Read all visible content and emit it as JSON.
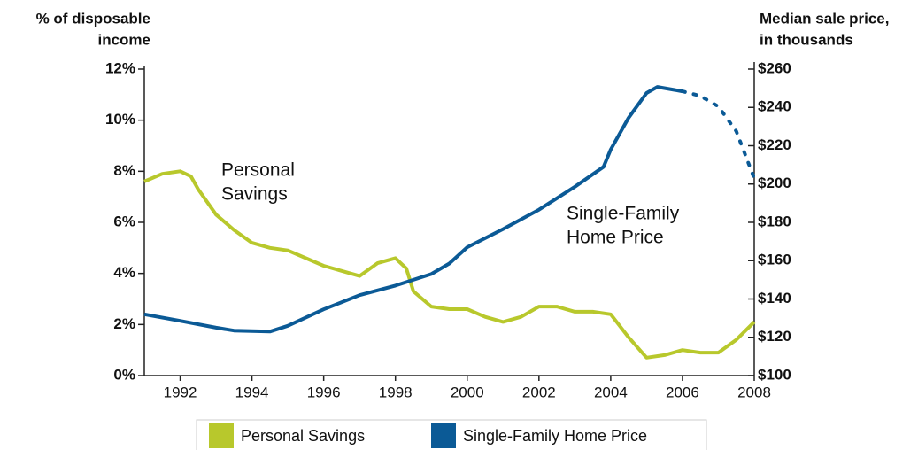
{
  "chart_data": {
    "type": "line",
    "y_axis_title": [
      "% of disposable",
      "income"
    ],
    "y2_axis_title": [
      "Median sale price,",
      "in thousands"
    ],
    "annotations": [
      [
        "Personal",
        "Savings"
      ],
      [
        "Single-Family",
        "Home Price"
      ]
    ],
    "xlim": [
      1991,
      2008
    ],
    "xticks": [
      1992,
      1994,
      1996,
      1998,
      2000,
      2002,
      2004,
      2006,
      2008
    ],
    "ylim": [
      0,
      12
    ],
    "yticks": [
      {
        "value": 0,
        "label": "0%"
      },
      {
        "value": 2,
        "label": "2%"
      },
      {
        "value": 4,
        "label": "4%"
      },
      {
        "value": 6,
        "label": "6%"
      },
      {
        "value": 8,
        "label": "8%"
      },
      {
        "value": 10,
        "label": "10%"
      },
      {
        "value": 12,
        "label": "12%"
      }
    ],
    "y2lim": [
      100,
      260
    ],
    "y2ticks": [
      {
        "value": 100,
        "label": "$100"
      },
      {
        "value": 120,
        "label": "$120"
      },
      {
        "value": 140,
        "label": "$140"
      },
      {
        "value": 160,
        "label": "$160"
      },
      {
        "value": 180,
        "label": "$180"
      },
      {
        "value": 200,
        "label": "$200"
      },
      {
        "value": 220,
        "label": "$220"
      },
      {
        "value": 240,
        "label": "$240"
      },
      {
        "value": 260,
        "label": "$260"
      }
    ],
    "series": [
      {
        "name": "Personal Savings",
        "color": "#b8c82c",
        "x": [
          1991,
          1991.5,
          1992,
          1992.3,
          1992.5,
          1993,
          1993.5,
          1994,
          1994.5,
          1995,
          1995.5,
          1996,
          1996.5,
          1997,
          1997.5,
          1998,
          1998.3,
          1998.5,
          1999,
          1999.5,
          2000,
          2000.5,
          2001,
          2001.5,
          2002,
          2002.5,
          2003,
          2003.5,
          2004,
          2004.5,
          2005,
          2005.5,
          2006,
          2006.5,
          2007,
          2007.5,
          2008
        ],
        "values": [
          7.6,
          7.9,
          8.0,
          7.8,
          7.3,
          6.3,
          5.7,
          5.2,
          5.0,
          4.9,
          4.6,
          4.3,
          4.1,
          3.9,
          4.4,
          4.6,
          4.2,
          3.3,
          2.7,
          2.6,
          2.6,
          2.3,
          2.1,
          2.3,
          2.7,
          2.7,
          2.5,
          2.5,
          2.4,
          1.5,
          0.7,
          0.8,
          1.0,
          0.9,
          0.9,
          1.4,
          2.1
        ]
      },
      {
        "name": "Single-Family Home Price",
        "color": "#0b5a96",
        "axis": "y2",
        "dashed_after": 2006,
        "x": [
          1991,
          1992,
          1993,
          1993.5,
          1994.5,
          1995,
          1996,
          1997,
          1998,
          1999,
          1999.5,
          2000,
          2001,
          2002,
          2003,
          2003.8,
          2004,
          2004.5,
          2005,
          2005.3,
          2006,
          2006.5,
          2007,
          2007.5,
          2008
        ],
        "values": [
          132,
          128.6,
          125,
          123.5,
          123,
          126,
          134.6,
          142,
          147,
          153,
          158.5,
          167,
          176.5,
          186.6,
          198.6,
          209,
          218,
          234.6,
          247.5,
          250.7,
          248.4,
          246,
          240.5,
          227.6,
          203
        ]
      }
    ]
  }
}
